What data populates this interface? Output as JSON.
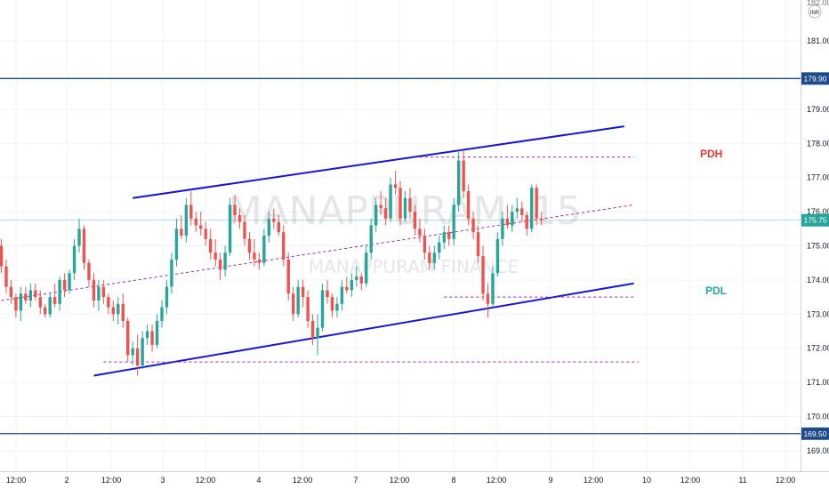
{
  "chart_data": {
    "type": "candlestick",
    "title": "",
    "watermark_symbol": "MANAPPURAM, 15",
    "watermark_name": "MANAPPURAM FINANCE",
    "currency": "INR",
    "ylim": [
      168.4,
      182.2
    ],
    "y_ticks": [
      "169.00",
      "170.00",
      "171.00",
      "172.00",
      "173.00",
      "174.00",
      "175.00",
      "176.00",
      "177.00",
      "178.00",
      "179.00",
      "181.00"
    ],
    "top_partial_label": "182.00",
    "x_ticks": [
      "12:00",
      "2",
      "12:00",
      "3",
      "12:00",
      "4",
      "12:00",
      "7",
      "12:00",
      "8",
      "12:00",
      "9",
      "12:00",
      "10",
      "12:00",
      "11",
      "12:00"
    ],
    "current_price": 175.75,
    "current_price_label": "175.75",
    "horizontal_levels": [
      {
        "value": 179.9,
        "label": "179.90",
        "color": "#1e4a8a"
      },
      {
        "value": 169.5,
        "label": "169.50",
        "color": "#1e4a8a"
      }
    ],
    "annotations": [
      {
        "text": "PDH",
        "color": "#e53935"
      },
      {
        "text": "PDL",
        "color": "#26a69a"
      }
    ],
    "trendlines": [
      {
        "name": "channel-top",
        "from": [
          27,
          176.4
        ],
        "to": [
          128,
          178.5
        ],
        "style": "solid",
        "color": "#1515d4"
      },
      {
        "name": "channel-bottom",
        "from": [
          19,
          171.2
        ],
        "to": [
          130,
          173.9
        ],
        "style": "solid",
        "color": "#1515d4"
      },
      {
        "name": "channel-mid",
        "from": [
          0,
          173.4
        ],
        "to": [
          130,
          176.2
        ],
        "style": "dashed",
        "color": "#9c27b0"
      },
      {
        "name": "pdh-level",
        "from": [
          86,
          177.6
        ],
        "to": [
          130,
          177.6
        ],
        "style": "dashed",
        "color": "#9c27b0"
      },
      {
        "name": "pdl-level",
        "from": [
          91,
          173.5
        ],
        "to": [
          130,
          173.5
        ],
        "style": "dashed",
        "color": "#9c27b0"
      },
      {
        "name": "low-level",
        "from": [
          21,
          171.6
        ],
        "to": [
          131,
          171.6
        ],
        "style": "dashed",
        "color": "#9c27b0"
      }
    ],
    "candles": [
      [
        175.0,
        175.2,
        174.2,
        174.4
      ],
      [
        174.4,
        174.6,
        173.6,
        173.8
      ],
      [
        173.8,
        174.0,
        173.3,
        173.5
      ],
      [
        173.5,
        173.6,
        172.9,
        173.1
      ],
      [
        173.1,
        173.8,
        172.8,
        173.6
      ],
      [
        173.6,
        173.8,
        173.3,
        173.4
      ],
      [
        173.4,
        173.9,
        173.2,
        173.7
      ],
      [
        173.7,
        173.9,
        173.4,
        173.5
      ],
      [
        173.5,
        173.7,
        173.0,
        173.2
      ],
      [
        173.2,
        173.3,
        172.9,
        173.0
      ],
      [
        173.0,
        173.6,
        172.9,
        173.5
      ],
      [
        173.5,
        173.9,
        173.2,
        173.3
      ],
      [
        173.3,
        174.1,
        173.1,
        174.0
      ],
      [
        174.0,
        174.2,
        173.5,
        173.7
      ],
      [
        173.7,
        174.3,
        173.6,
        174.2
      ],
      [
        174.2,
        175.2,
        174.0,
        175.0
      ],
      [
        175.0,
        175.8,
        174.8,
        175.5
      ],
      [
        175.5,
        175.6,
        174.3,
        174.5
      ],
      [
        174.5,
        174.6,
        173.8,
        174.0
      ],
      [
        174.0,
        174.2,
        173.2,
        173.4
      ],
      [
        173.4,
        174.0,
        173.1,
        173.8
      ],
      [
        173.8,
        174.0,
        173.3,
        173.5
      ],
      [
        173.5,
        173.6,
        173.0,
        173.2
      ],
      [
        173.2,
        173.4,
        172.8,
        173.0
      ],
      [
        173.0,
        173.5,
        172.7,
        173.3
      ],
      [
        173.3,
        173.6,
        172.6,
        172.8
      ],
      [
        172.8,
        172.9,
        171.6,
        171.8
      ],
      [
        171.8,
        172.2,
        171.5,
        172.0
      ],
      [
        172.0,
        172.4,
        171.2,
        171.5
      ],
      [
        171.5,
        172.5,
        171.4,
        172.3
      ],
      [
        172.3,
        172.7,
        172.1,
        172.5
      ],
      [
        172.5,
        172.7,
        171.9,
        172.1
      ],
      [
        172.1,
        173.0,
        172.0,
        172.8
      ],
      [
        172.8,
        173.4,
        172.6,
        173.2
      ],
      [
        173.2,
        174.0,
        173.0,
        173.8
      ],
      [
        173.8,
        174.8,
        173.6,
        174.6
      ],
      [
        174.6,
        175.8,
        174.4,
        175.5
      ],
      [
        175.5,
        175.9,
        175.2,
        175.3
      ],
      [
        175.3,
        176.4,
        175.1,
        176.2
      ],
      [
        176.2,
        176.6,
        175.6,
        175.8
      ],
      [
        175.8,
        176.0,
        175.4,
        175.6
      ],
      [
        175.6,
        176.0,
        175.3,
        175.5
      ],
      [
        175.5,
        175.7,
        175.0,
        175.2
      ],
      [
        175.2,
        175.5,
        174.6,
        174.8
      ],
      [
        174.8,
        175.2,
        174.4,
        174.6
      ],
      [
        174.6,
        174.8,
        174.0,
        174.3
      ],
      [
        174.3,
        175.0,
        174.1,
        174.8
      ],
      [
        174.8,
        176.4,
        174.7,
        176.2
      ],
      [
        176.2,
        176.5,
        175.7,
        175.9
      ],
      [
        175.9,
        176.1,
        175.5,
        175.7
      ],
      [
        175.7,
        175.9,
        175.0,
        175.2
      ],
      [
        175.2,
        175.4,
        174.6,
        174.8
      ],
      [
        174.8,
        175.2,
        174.4,
        174.6
      ],
      [
        174.6,
        174.8,
        174.3,
        174.5
      ],
      [
        174.5,
        175.5,
        174.4,
        175.3
      ],
      [
        175.3,
        176.0,
        175.1,
        175.8
      ],
      [
        175.8,
        176.1,
        175.5,
        175.7
      ],
      [
        175.7,
        175.9,
        175.3,
        175.4
      ],
      [
        175.4,
        175.6,
        174.4,
        174.6
      ],
      [
        174.6,
        174.8,
        173.4,
        173.6
      ],
      [
        173.6,
        173.8,
        172.8,
        173.0
      ],
      [
        173.0,
        174.0,
        172.9,
        173.8
      ],
      [
        173.8,
        174.0,
        173.2,
        173.5
      ],
      [
        173.5,
        173.7,
        172.6,
        172.8
      ],
      [
        172.8,
        173.0,
        172.1,
        172.3
      ],
      [
        172.3,
        173.0,
        171.8,
        172.6
      ],
      [
        172.6,
        173.9,
        172.5,
        173.7
      ],
      [
        173.7,
        174.0,
        173.3,
        173.5
      ],
      [
        173.5,
        173.6,
        172.9,
        173.1
      ],
      [
        173.1,
        173.5,
        172.9,
        173.3
      ],
      [
        173.3,
        174.0,
        173.1,
        173.8
      ],
      [
        173.8,
        174.1,
        173.6,
        173.7
      ],
      [
        173.7,
        174.2,
        173.5,
        174.0
      ],
      [
        174.0,
        174.4,
        173.8,
        174.1
      ],
      [
        174.1,
        174.2,
        173.7,
        173.9
      ],
      [
        173.9,
        175.0,
        173.8,
        174.8
      ],
      [
        174.8,
        175.8,
        174.6,
        175.6
      ],
      [
        175.6,
        176.4,
        175.4,
        176.2
      ],
      [
        176.2,
        176.6,
        175.9,
        176.1
      ],
      [
        176.1,
        176.4,
        175.6,
        175.8
      ],
      [
        175.8,
        177.0,
        175.7,
        176.8
      ],
      [
        176.8,
        177.2,
        176.5,
        176.7
      ],
      [
        176.7,
        176.9,
        175.6,
        175.8
      ],
      [
        175.8,
        176.6,
        175.7,
        176.4
      ],
      [
        176.4,
        176.7,
        175.8,
        176.0
      ],
      [
        176.0,
        176.2,
        175.3,
        175.5
      ],
      [
        175.5,
        175.8,
        175.1,
        175.3
      ],
      [
        175.3,
        175.5,
        174.6,
        174.8
      ],
      [
        174.8,
        175.0,
        174.3,
        174.5
      ],
      [
        174.5,
        175.0,
        174.3,
        174.8
      ],
      [
        174.8,
        175.3,
        174.6,
        175.1
      ],
      [
        175.1,
        175.6,
        174.9,
        175.4
      ],
      [
        175.4,
        175.6,
        175.0,
        175.2
      ],
      [
        175.2,
        176.4,
        175.0,
        176.2
      ],
      [
        176.2,
        177.8,
        176.0,
        177.5
      ],
      [
        177.5,
        177.8,
        176.4,
        176.6
      ],
      [
        176.6,
        176.8,
        175.6,
        175.8
      ],
      [
        175.8,
        176.0,
        175.2,
        175.4
      ],
      [
        175.4,
        175.6,
        174.5,
        174.7
      ],
      [
        174.7,
        175.0,
        173.4,
        173.6
      ],
      [
        173.6,
        173.9,
        172.9,
        173.3
      ],
      [
        173.3,
        174.4,
        173.2,
        174.2
      ],
      [
        174.2,
        175.4,
        174.1,
        175.2
      ],
      [
        175.2,
        176.0,
        175.0,
        175.8
      ],
      [
        175.8,
        176.2,
        175.5,
        175.6
      ],
      [
        175.6,
        176.2,
        175.4,
        176.0
      ],
      [
        176.0,
        176.4,
        175.8,
        176.1
      ],
      [
        176.1,
        176.3,
        175.7,
        175.9
      ],
      [
        175.9,
        176.0,
        175.3,
        175.5
      ],
      [
        175.5,
        176.8,
        175.4,
        176.7
      ],
      [
        176.7,
        176.8,
        175.6,
        175.8
      ],
      [
        175.8,
        176.0,
        175.6,
        175.75
      ]
    ]
  },
  "colors": {
    "up": "#26a69a",
    "down": "#ef5350",
    "grid": "#f0f3fa",
    "price_label_bg": "#26a69a",
    "level_label_bg": "#1e4a8a"
  }
}
